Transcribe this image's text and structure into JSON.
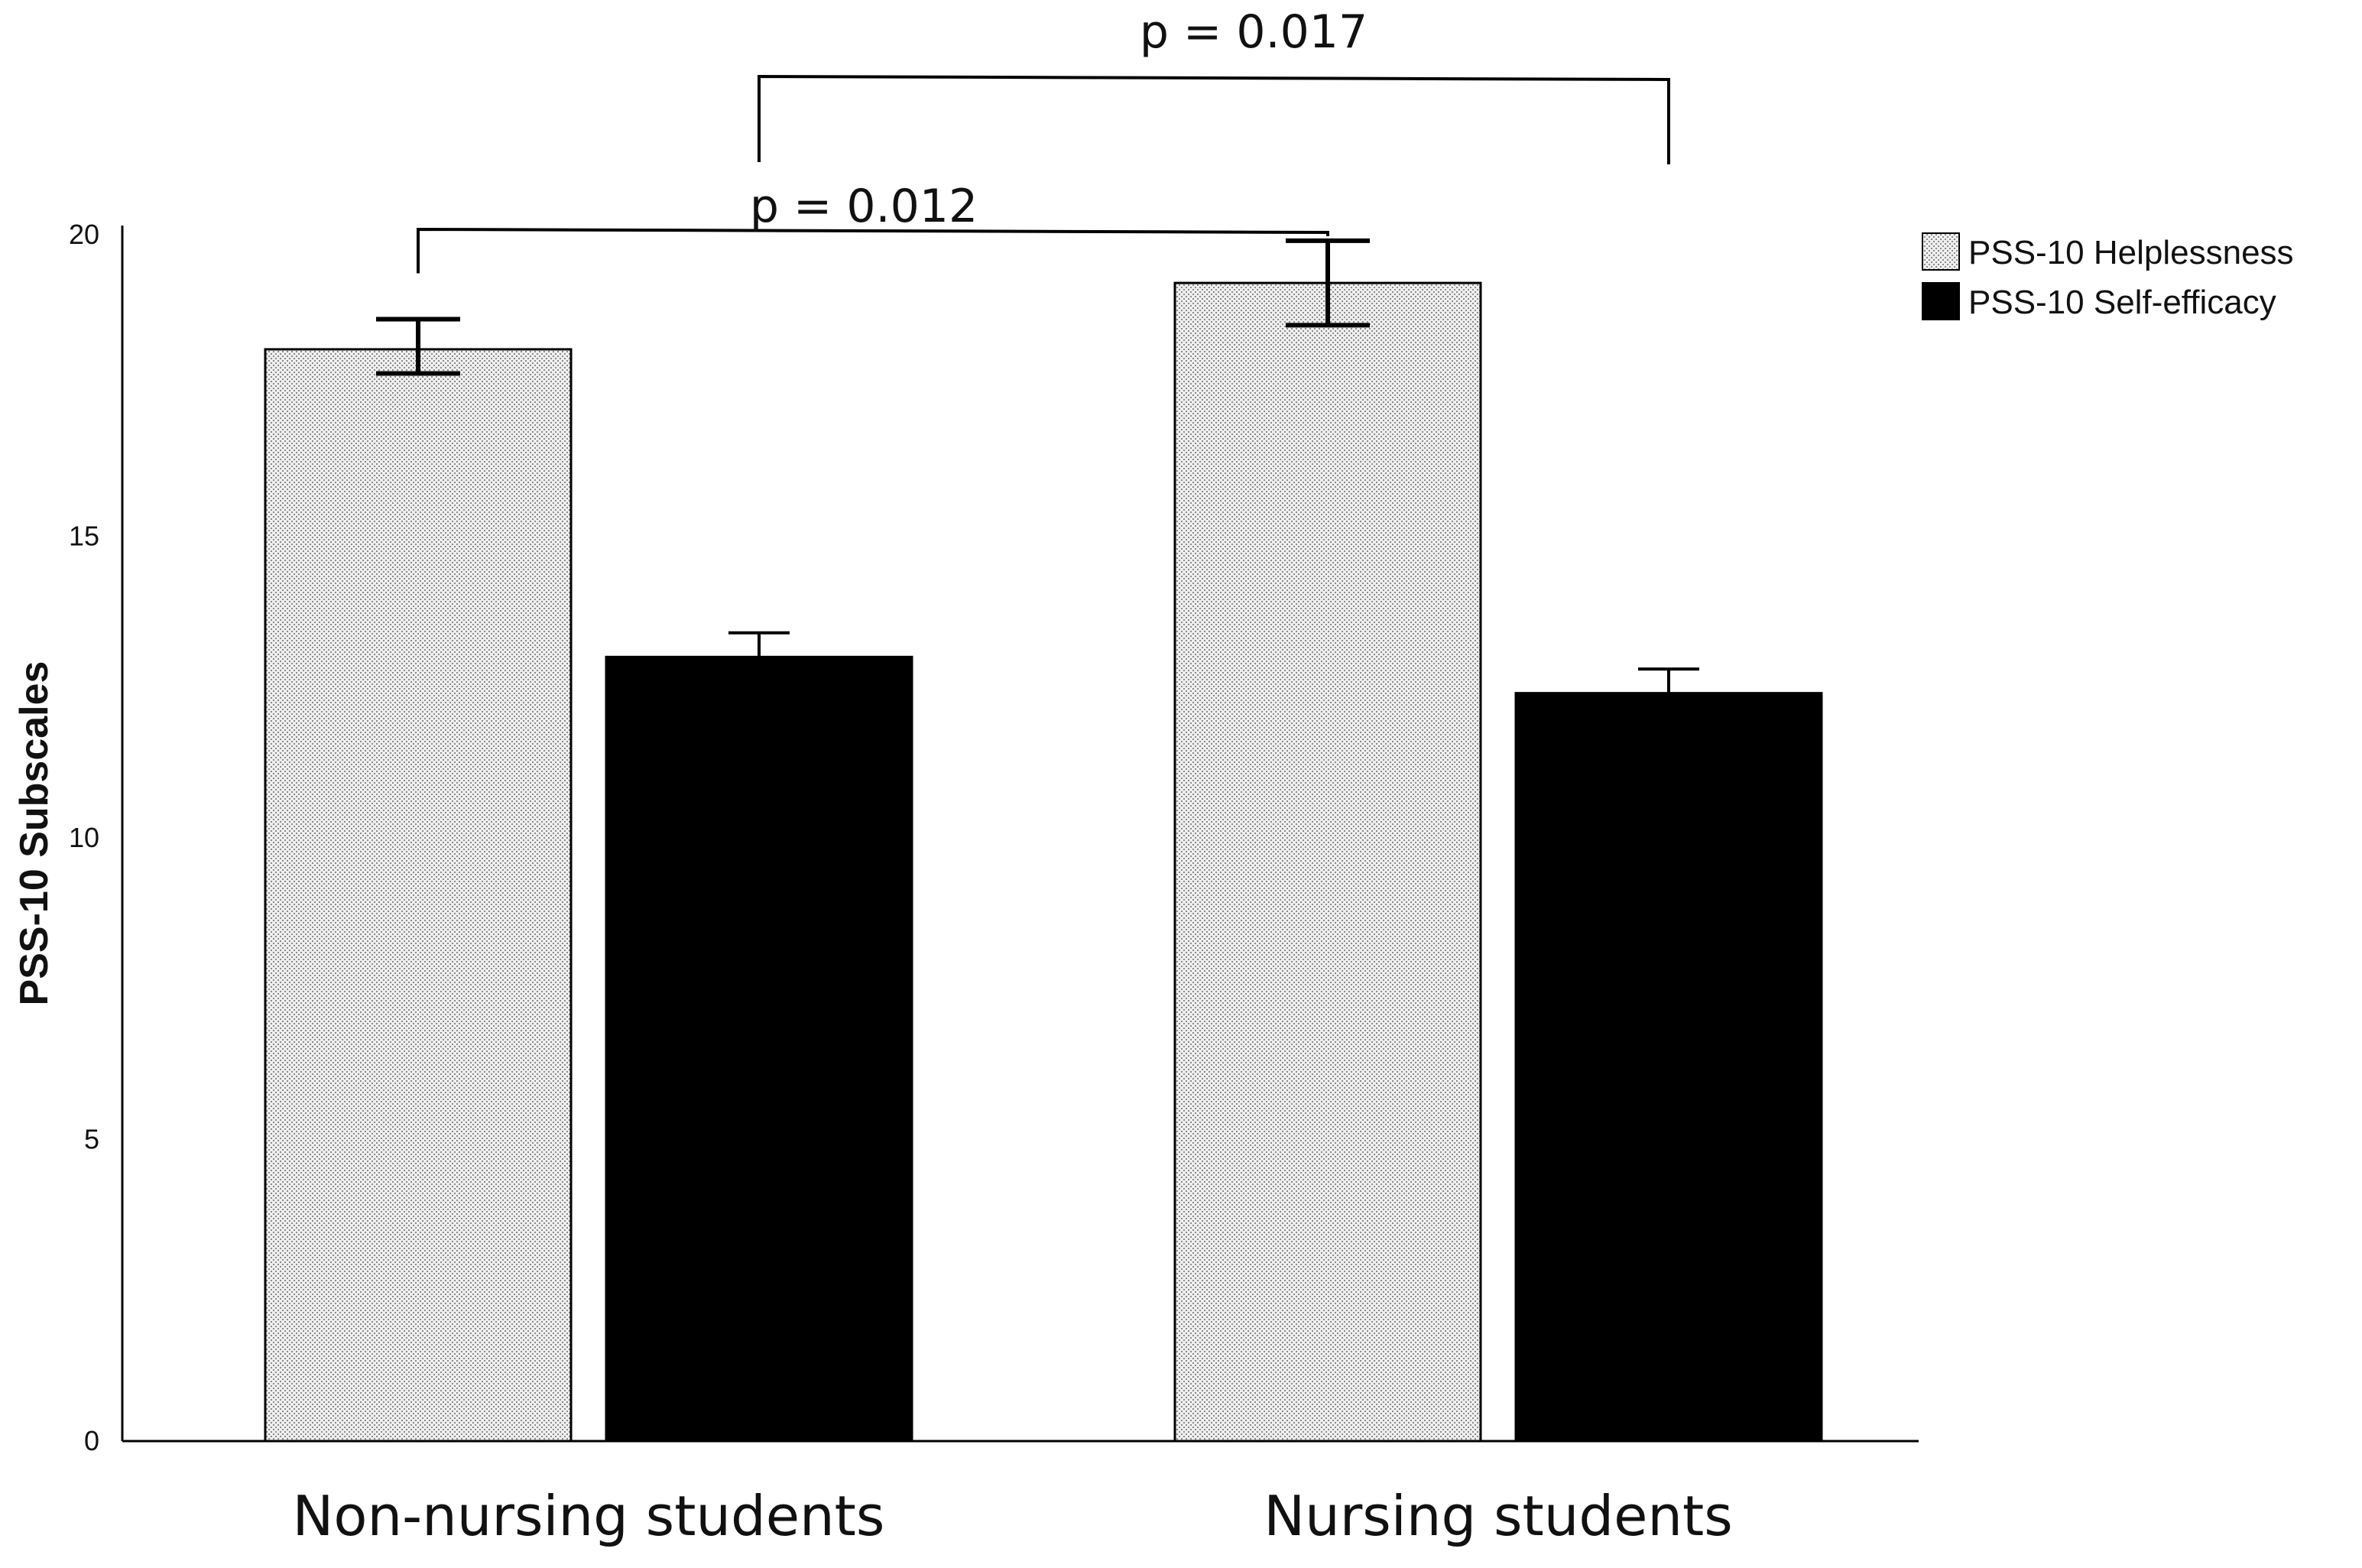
{
  "chart_data": {
    "type": "bar",
    "title": "",
    "xlabel": "",
    "ylabel": "PSS-10 Subscales",
    "ylim": [
      0,
      20
    ],
    "yticks": [
      0,
      5,
      10,
      15,
      20
    ],
    "grid": false,
    "categories": [
      "Non-nursing students",
      "Nursing students"
    ],
    "series": [
      {
        "name": "PSS-10 Helplessness",
        "values": [
          18.1,
          19.2
        ],
        "error_low": [
          17.7,
          18.5
        ],
        "error_high": [
          18.6,
          19.9
        ],
        "fill": "stipple",
        "color": "#d9d9d9"
      },
      {
        "name": "PSS-10 Self-efficacy",
        "values": [
          13.0,
          12.4
        ],
        "error_low": [
          13.0,
          12.4
        ],
        "error_high": [
          13.4,
          12.8
        ],
        "fill": "solid",
        "color": "#000000"
      }
    ],
    "legend_position": "top-right",
    "annotations": [
      {
        "label": "p = 0.012",
        "from": {
          "category": 0,
          "series": 0
        },
        "to": {
          "category": 1,
          "series": 0
        }
      },
      {
        "label": "p = 0.017",
        "from": {
          "category": 0,
          "series": 1
        },
        "to": {
          "category": 1,
          "series": 1
        }
      }
    ]
  }
}
